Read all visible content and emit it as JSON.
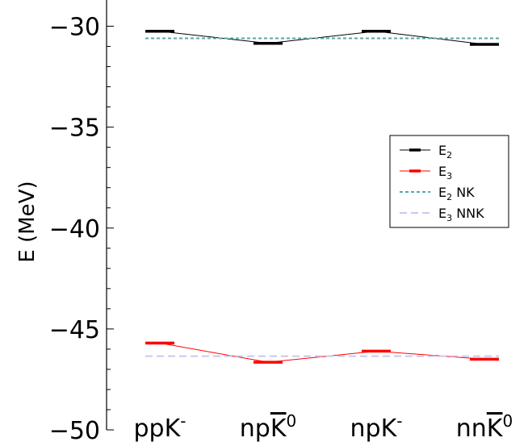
{
  "chart_data": {
    "type": "line",
    "title": "",
    "xlabel": "",
    "ylabel": "E (MeV)",
    "ylim": [
      -50,
      -29.5
    ],
    "yticks": [
      -50,
      -45,
      -40,
      -35,
      -30
    ],
    "ytick_labels": [
      "−50",
      "−45",
      "−40",
      "−35",
      "−30"
    ],
    "categories": [
      {
        "base": "ppK",
        "sup": "-",
        "bar": ""
      },
      {
        "base": "np",
        "sup": "0",
        "bar": "K"
      },
      {
        "base": "npK",
        "sup": "-",
        "bar": ""
      },
      {
        "base": "nn",
        "sup": "0",
        "bar": "K"
      }
    ],
    "series": [
      {
        "name": "E2",
        "legend_main": "E",
        "legend_sub": "2",
        "legend_suffix": "",
        "values": [
          -30.25,
          -30.85,
          -30.25,
          -30.9
        ],
        "color": "#000000",
        "style": "line-marker"
      },
      {
        "name": "E3",
        "legend_main": "E",
        "legend_sub": "3",
        "legend_suffix": "",
        "values": [
          -45.7,
          -46.65,
          -46.1,
          -46.5
        ],
        "color": "#ff0000",
        "style": "line-marker"
      },
      {
        "name": "E2 NK",
        "legend_main": "E",
        "legend_sub": "2",
        "legend_suffix": "NK",
        "values": [
          -30.6,
          -30.6,
          -30.6,
          -30.6
        ],
        "color": "#5aa6a6",
        "style": "dotted"
      },
      {
        "name": "E3 NNK",
        "legend_main": "E",
        "legend_sub": "3",
        "legend_suffix": "NNK",
        "values": [
          -46.35,
          -46.35,
          -46.35,
          -46.35
        ],
        "color": "#c8c8f0",
        "style": "dashed"
      }
    ],
    "legend_position": "center-right",
    "grid": false
  }
}
